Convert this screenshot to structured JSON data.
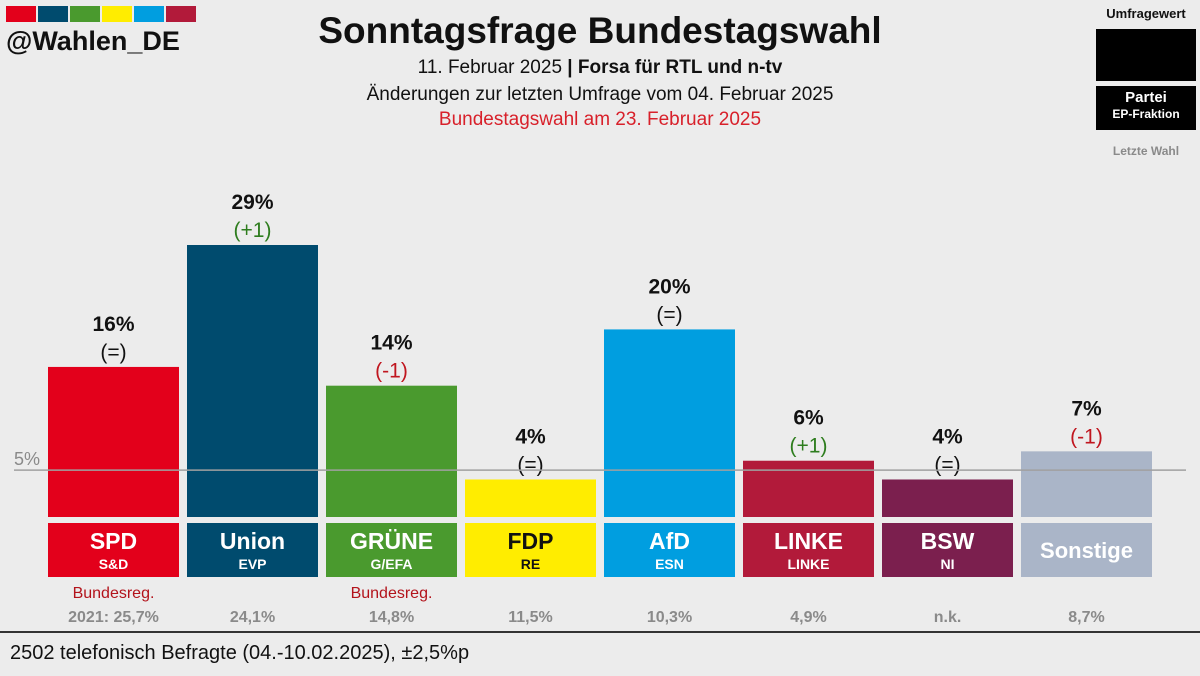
{
  "header": {
    "logo_colors": [
      "#e3001b",
      "#004b6e",
      "#4a9a2e",
      "#ffed00",
      "#009ee0",
      "#b21a3a"
    ],
    "handle": "@Wahlen_DE",
    "title": "Sonntagsfrage Bundestagswahl",
    "date": "11. Februar 2025",
    "separator": "|",
    "pollster": "Forsa für RTL und n-tv",
    "changes_note": "Änderungen zur letzten Umfrage vom 04. Februar 2025",
    "election_note": "Bundestagswahl am 23. Februar 2025"
  },
  "legend": {
    "title": "Umfragewert",
    "party": "Partei",
    "faction": "EP-Fraktion",
    "last": "Letzte Wahl"
  },
  "chart_data": {
    "type": "bar",
    "title": "Sonntagsfrage Bundestagswahl",
    "ylim": [
      0,
      29
    ],
    "threshold": {
      "value": 5,
      "label": "5%"
    },
    "grid": false,
    "bars": [
      {
        "party": "SPD",
        "faction": "S&D",
        "value": 16,
        "value_label": "16%",
        "change": "(=)",
        "change_dir": "same",
        "note": "Bundesreg.",
        "last": "2021: 25,7%",
        "color": "#e3001b",
        "text_color": "#ffffff"
      },
      {
        "party": "Union",
        "faction": "EVP",
        "value": 29,
        "value_label": "29%",
        "change": "(+1)",
        "change_dir": "up",
        "note": "",
        "last": "24,1%",
        "color": "#004b6e",
        "text_color": "#ffffff"
      },
      {
        "party": "GRÜNE",
        "faction": "G/EFA",
        "value": 14,
        "value_label": "14%",
        "change": "(-1)",
        "change_dir": "down",
        "note": "Bundesreg.",
        "last": "14,8%",
        "color": "#4a9a2e",
        "text_color": "#ffffff"
      },
      {
        "party": "FDP",
        "faction": "RE",
        "value": 4,
        "value_label": "4%",
        "change": "(=)",
        "change_dir": "same",
        "note": "",
        "last": "11,5%",
        "color": "#ffed00",
        "text_color": "#111111"
      },
      {
        "party": "AfD",
        "faction": "ESN",
        "value": 20,
        "value_label": "20%",
        "change": "(=)",
        "change_dir": "same",
        "note": "",
        "last": "10,3%",
        "color": "#009ee0",
        "text_color": "#ffffff"
      },
      {
        "party": "LINKE",
        "faction": "LINKE",
        "value": 6,
        "value_label": "6%",
        "change": "(+1)",
        "change_dir": "up",
        "note": "",
        "last": "4,9%",
        "color": "#b21a3a",
        "text_color": "#ffffff"
      },
      {
        "party": "BSW",
        "faction": "NI",
        "value": 4,
        "value_label": "4%",
        "change": "(=)",
        "change_dir": "same",
        "note": "",
        "last": "n.k.",
        "color": "#7b1f4e",
        "text_color": "#ffffff"
      },
      {
        "party": "Sonstige",
        "faction": "",
        "value": 7,
        "value_label": "7%",
        "change": "(-1)",
        "change_dir": "down",
        "note": "",
        "last": "8,7%",
        "color": "#aab5c8",
        "text_color": "#ffffff"
      }
    ],
    "change_colors": {
      "up": "#2e7d1e",
      "down": "#c0161f",
      "same": "#111111"
    },
    "note_color": "#b3131b",
    "last_color": "#8a8a8a"
  },
  "footer": {
    "text": "2502 telefonisch Befragte (04.-10.02.2025), ±2,5%p"
  }
}
